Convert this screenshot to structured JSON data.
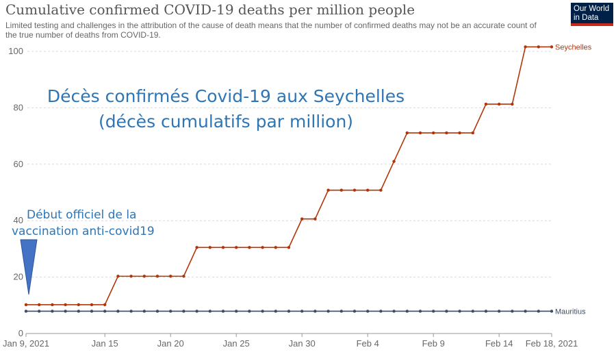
{
  "header": {
    "title": "Cumulative confirmed COVID-19 deaths per million people",
    "subtitle": "Limited testing and challenges in the attribution of the cause of death means that the number of confirmed deaths may not be an accurate count of the true number of deaths from COVID-19.",
    "logo_line1": "Our World",
    "logo_line2": "in Data"
  },
  "annotations": {
    "main_line1": "Décès confirmés Covid-19 aux Seychelles",
    "main_line2": "(décès cumulatifs par million)",
    "vacc_line1": "Début officiel de la",
    "vacc_line2": "vaccination anti-covid19",
    "marker_color": "#4472c4"
  },
  "chart_data": {
    "type": "line",
    "title": "Cumulative confirmed COVID-19 deaths per million people",
    "x": [
      "Jan 9",
      "Jan 10",
      "Jan 11",
      "Jan 12",
      "Jan 13",
      "Jan 14",
      "Jan 15",
      "Jan 16",
      "Jan 17",
      "Jan 18",
      "Jan 19",
      "Jan 20",
      "Jan 21",
      "Jan 22",
      "Jan 23",
      "Jan 24",
      "Jan 25",
      "Jan 26",
      "Jan 27",
      "Jan 28",
      "Jan 29",
      "Jan 30",
      "Jan 31",
      "Feb 1",
      "Feb 2",
      "Feb 3",
      "Feb 4",
      "Feb 5",
      "Feb 6",
      "Feb 7",
      "Feb 8",
      "Feb 9",
      "Feb 10",
      "Feb 11",
      "Feb 12",
      "Feb 13",
      "Feb 14",
      "Feb 15",
      "Feb 16",
      "Feb 17",
      "Feb 18"
    ],
    "x_tick_labels": [
      "Jan 9, 2021",
      "Jan 15",
      "Jan 20",
      "Jan 25",
      "Jan 30",
      "Feb 4",
      "Feb 9",
      "Feb 14",
      "Feb 18, 2021"
    ],
    "x_tick_index": [
      0,
      6,
      11,
      16,
      21,
      26,
      31,
      36,
      40
    ],
    "y_ticks": [
      0,
      20,
      40,
      60,
      80,
      100
    ],
    "ylim": [
      0,
      100
    ],
    "grid": true,
    "series": [
      {
        "name": "Seychelles",
        "color": "#b13507",
        "values": [
          10.2,
          10.2,
          10.2,
          10.2,
          10.2,
          10.2,
          10.2,
          20.3,
          20.3,
          20.3,
          20.3,
          20.3,
          20.3,
          30.5,
          30.5,
          30.5,
          30.5,
          30.5,
          30.5,
          30.5,
          30.5,
          40.6,
          40.6,
          50.8,
          50.8,
          50.8,
          50.8,
          50.8,
          61,
          71.1,
          71.1,
          71.1,
          71.1,
          71.1,
          71.1,
          81.3,
          81.3,
          81.3,
          101.6,
          101.6,
          101.6
        ]
      },
      {
        "name": "Mauritius",
        "color": "#3c4e66",
        "values": [
          7.9,
          7.9,
          7.9,
          7.9,
          7.9,
          7.9,
          7.9,
          7.9,
          7.9,
          7.9,
          7.9,
          7.9,
          7.9,
          7.9,
          7.9,
          7.9,
          7.9,
          7.9,
          7.9,
          7.9,
          7.9,
          7.9,
          7.9,
          7.9,
          7.9,
          7.9,
          7.9,
          7.9,
          7.9,
          7.9,
          7.9,
          7.9,
          7.9,
          7.9,
          7.9,
          7.9,
          7.9,
          7.9,
          7.9,
          7.9,
          7.9
        ]
      }
    ]
  }
}
